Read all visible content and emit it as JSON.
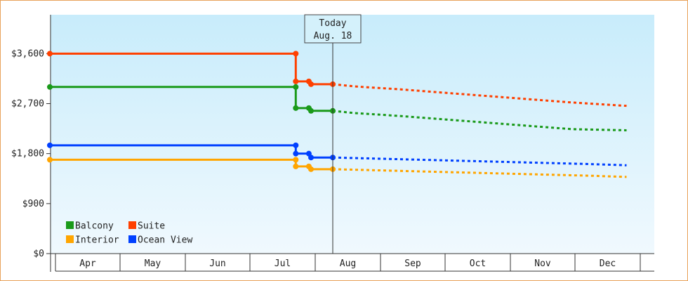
{
  "chart_data": {
    "type": "line",
    "title": "",
    "xlabel": "",
    "ylabel": "",
    "ylim": [
      0,
      4300
    ],
    "y_ticks": [
      0,
      900,
      1800,
      2700,
      3600
    ],
    "y_tick_labels": [
      "$0",
      "$900",
      "$1,800",
      "$2,700",
      "$3,600"
    ],
    "x_months": [
      "Apr",
      "May",
      "Jun",
      "Jul",
      "Aug",
      "Sep",
      "Oct",
      "Nov",
      "Dec"
    ],
    "x_range_days": [
      0,
      265
    ],
    "today": {
      "line1": "Today",
      "line2": "Aug. 18",
      "day": 130
    },
    "grid": false,
    "legend_placement": "bottom-left",
    "series": [
      {
        "name": "Suite",
        "color": "#ff4000",
        "history": [
          [
            0,
            3600
          ],
          [
            113,
            3600
          ],
          [
            113,
            3100
          ],
          [
            119,
            3100
          ],
          [
            120,
            3050
          ],
          [
            130,
            3050
          ]
        ],
        "forecast": [
          [
            130,
            3050
          ],
          [
            140,
            3010
          ],
          [
            160,
            2960
          ],
          [
            180,
            2900
          ],
          [
            200,
            2840
          ],
          [
            220,
            2780
          ],
          [
            240,
            2720
          ],
          [
            265,
            2660
          ]
        ]
      },
      {
        "name": "Balcony",
        "color": "#1a9a1a",
        "history": [
          [
            0,
            3000
          ],
          [
            113,
            3000
          ],
          [
            113,
            2620
          ],
          [
            119,
            2620
          ],
          [
            120,
            2570
          ],
          [
            130,
            2570
          ]
        ],
        "forecast": [
          [
            130,
            2570
          ],
          [
            140,
            2530
          ],
          [
            160,
            2480
          ],
          [
            180,
            2420
          ],
          [
            200,
            2360
          ],
          [
            220,
            2300
          ],
          [
            240,
            2240
          ],
          [
            265,
            2220
          ]
        ]
      },
      {
        "name": "Ocean View",
        "color": "#0040ff",
        "history": [
          [
            0,
            1950
          ],
          [
            113,
            1950
          ],
          [
            113,
            1800
          ],
          [
            119,
            1800
          ],
          [
            120,
            1730
          ],
          [
            130,
            1730
          ]
        ],
        "forecast": [
          [
            130,
            1730
          ],
          [
            150,
            1710
          ],
          [
            170,
            1690
          ],
          [
            190,
            1670
          ],
          [
            210,
            1650
          ],
          [
            230,
            1630
          ],
          [
            250,
            1610
          ],
          [
            265,
            1590
          ]
        ]
      },
      {
        "name": "Interior",
        "color": "#ffa500",
        "history": [
          [
            0,
            1690
          ],
          [
            113,
            1690
          ],
          [
            113,
            1570
          ],
          [
            119,
            1570
          ],
          [
            120,
            1520
          ],
          [
            130,
            1520
          ]
        ],
        "forecast": [
          [
            130,
            1520
          ],
          [
            150,
            1500
          ],
          [
            170,
            1480
          ],
          [
            190,
            1460
          ],
          [
            210,
            1440
          ],
          [
            230,
            1420
          ],
          [
            250,
            1400
          ],
          [
            265,
            1380
          ]
        ]
      }
    ],
    "legend_rows": [
      [
        "Balcony",
        "Suite"
      ],
      [
        "Interior",
        "Ocean View"
      ]
    ]
  }
}
